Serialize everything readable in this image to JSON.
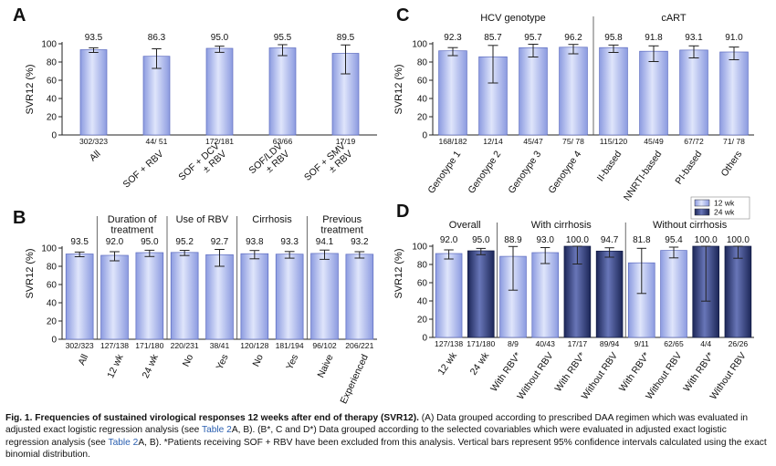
{
  "chart_data": [
    {
      "panel": "A",
      "type": "bar",
      "ylabel": "SVR12 (%)",
      "ylim": [
        0,
        100
      ],
      "yticks": [
        0,
        20,
        40,
        60,
        80,
        100
      ],
      "categories": [
        "All",
        "SOF + RBV",
        "SOF + DCV\n± RBV",
        "SOF/LDV\n± RBV",
        "SOF + SMV\n± RBV"
      ],
      "values": [
        93.5,
        86.3,
        95.0,
        95.5,
        89.5
      ],
      "ci_low": [
        90.5,
        73.0,
        90.6,
        87.0,
        67.0
      ],
      "ci_high": [
        95.6,
        94.5,
        97.4,
        99.0,
        98.7
      ],
      "value_labels": [
        "93.5",
        "86.3",
        "95.0",
        "95.5",
        "89.5"
      ],
      "counts": [
        "302/323",
        "44/ 51",
        "172/181",
        "63/66",
        "17/19"
      ]
    },
    {
      "panel": "B",
      "type": "bar",
      "ylabel": "SVR12 (%)",
      "ylim": [
        0,
        100
      ],
      "yticks": [
        0,
        20,
        40,
        60,
        80,
        100
      ],
      "groups": [
        {
          "label": "",
          "span": [
            0,
            0
          ]
        },
        {
          "label": "Duration of\ntreatment",
          "span": [
            1,
            2
          ]
        },
        {
          "label": "Use of RBV",
          "span": [
            3,
            4
          ]
        },
        {
          "label": "Cirrhosis",
          "span": [
            5,
            6
          ]
        },
        {
          "label": "Previous\ntreatment",
          "span": [
            7,
            8
          ]
        }
      ],
      "categories": [
        "All",
        "12 wk",
        "24 wk",
        "No",
        "Yes",
        "No",
        "Yes",
        "Naive",
        "Experienced"
      ],
      "values": [
        93.5,
        92.0,
        95.0,
        95.2,
        92.7,
        93.8,
        93.3,
        94.1,
        93.2
      ],
      "ci_low": [
        90.5,
        86.0,
        90.7,
        91.8,
        80.0,
        88.2,
        88.9,
        87.6,
        89.0
      ],
      "ci_high": [
        95.6,
        96.0,
        97.6,
        97.5,
        98.5,
        97.3,
        96.2,
        97.8,
        96.0
      ],
      "value_labels": [
        "93.5",
        "92.0",
        "95.0",
        "95.2",
        "92.7",
        "93.8",
        "93.3",
        "94.1",
        "93.2"
      ],
      "counts": [
        "302/323",
        "127/138",
        "171/180",
        "220/231",
        "38/41",
        "120/128",
        "181/194",
        "96/102",
        "206/221"
      ]
    },
    {
      "panel": "C",
      "type": "bar",
      "ylabel": "SVR12 (%)",
      "ylim": [
        0,
        100
      ],
      "yticks": [
        0,
        20,
        40,
        60,
        80,
        100
      ],
      "groups": [
        {
          "label": "HCV genotype",
          "span": [
            0,
            3
          ]
        },
        {
          "label": "cART",
          "span": [
            4,
            7
          ]
        }
      ],
      "categories": [
        "Genotype 1",
        "Genotype 2",
        "Genotype 3",
        "Genotype 4",
        "II-based",
        "NNRTI-based",
        "PI-based",
        "Others"
      ],
      "values": [
        92.3,
        85.7,
        95.7,
        96.2,
        95.8,
        91.8,
        93.1,
        91.0
      ],
      "ci_low": [
        87.0,
        57.0,
        85.5,
        89.0,
        90.5,
        80.5,
        84.5,
        82.5
      ],
      "ci_high": [
        95.8,
        98.2,
        99.5,
        99.3,
        98.6,
        97.7,
        97.7,
        96.4
      ],
      "value_labels": [
        "92.3",
        "85.7",
        "95.7",
        "96.2",
        "95.8",
        "91.8",
        "93.1",
        "91.0"
      ],
      "counts": [
        "168/182",
        "12/14",
        "45/47",
        "75/ 78",
        "115/120",
        "45/49",
        "67/72",
        "71/ 78"
      ]
    },
    {
      "panel": "D",
      "type": "bar",
      "ylabel": "SVR12 (%)",
      "ylim": [
        0,
        100
      ],
      "yticks": [
        0,
        20,
        40,
        60,
        80,
        100
      ],
      "legend": {
        "placement": "top-right",
        "items": [
          {
            "label": "12 wk",
            "color": "#bcc8f2"
          },
          {
            "label": "24 wk",
            "color": "#2a3a7a"
          }
        ]
      },
      "groups": [
        {
          "label": "Overall",
          "span": [
            0,
            1
          ]
        },
        {
          "label": "With cirrhosis",
          "span": [
            2,
            5
          ]
        },
        {
          "label": "Without cirrhosis",
          "span": [
            6,
            9
          ]
        }
      ],
      "categories": [
        "12 wk",
        "24 wk",
        "With RBV*",
        "Without RBV",
        "With RBV*",
        "Without RBV",
        "With RBV*",
        "Without RBV",
        "With RBV*",
        "Without RBV"
      ],
      "series_index": [
        0,
        1,
        0,
        0,
        1,
        1,
        0,
        0,
        1,
        1
      ],
      "values": [
        92.0,
        95.0,
        88.9,
        93.0,
        100.0,
        94.7,
        81.8,
        95.4,
        100.0,
        100.0
      ],
      "ci_low": [
        86.0,
        90.7,
        51.8,
        81.0,
        80.5,
        88.0,
        48.2,
        87.2,
        39.8,
        86.8
      ],
      "ci_high": [
        96.0,
        97.6,
        99.7,
        98.5,
        100.0,
        98.3,
        97.7,
        99.0,
        100.0,
        100.0
      ],
      "value_labels": [
        "92.0",
        "95.0",
        "88.9",
        "93.0",
        "100.0",
        "94.7",
        "81.8",
        "95.4",
        "100.0",
        "100.0"
      ],
      "counts": [
        "127/138",
        "171/180",
        "8/9",
        "40/43",
        "17/17",
        "89/94",
        "9/11",
        "62/65",
        "4/4",
        "26/26"
      ]
    }
  ],
  "caption": {
    "fig_label": "Fig. 1. Frequencies of sustained virological responses 12 weeks after end of therapy (SVR12).",
    "part1": " (A) Data grouped according to prescribed DAA regimen which was evaluated in adjusted exact logistic regression analysis (see ",
    "link1": "Table 2",
    "part2": "A, B). (B*, C and D*) Data grouped according to the selected covariables which were evaluated in adjusted exact logistic regression analysis (see ",
    "link2": "Table 2",
    "part3": "A, B). *Patients receiving SOF + RBV have been excluded from this analysis. Vertical bars represent 95% confidence intervals calculated using the exact binomial distribution."
  }
}
